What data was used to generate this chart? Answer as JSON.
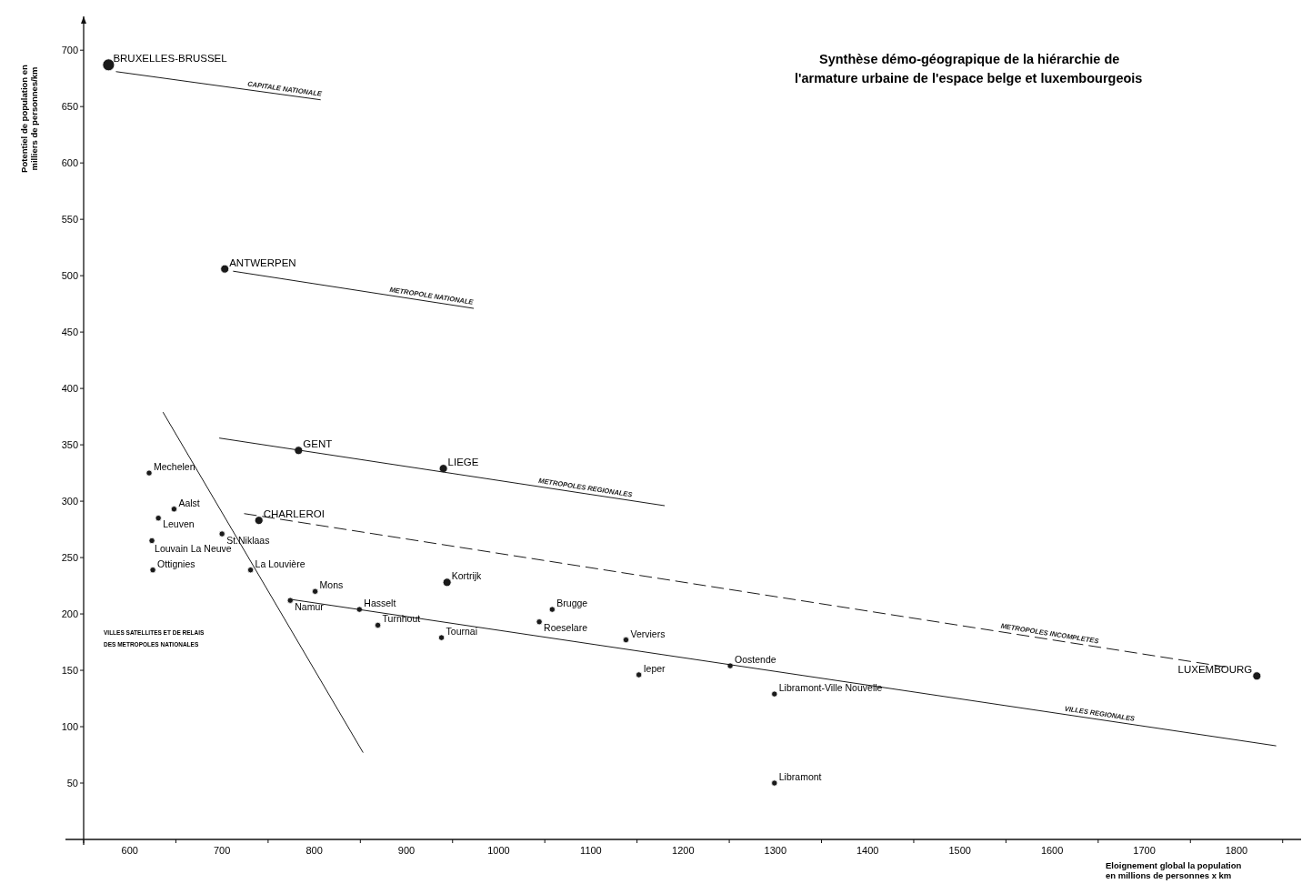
{
  "chart_data": {
    "type": "scatter",
    "title": "Synthèse démo-géograpique de la hiérarchie de\nl'armature urbaine de l'espace belge et luxembourgeois",
    "xlabel": "Eloignement global la population\nen millions de personnes x km",
    "ylabel": "Potentiel de population en\nmilliers de personnes/km",
    "xlim": [
      550,
      1870
    ],
    "ylim": [
      0,
      730
    ],
    "xticks": [
      {
        "value": 550,
        "label": null
      },
      600,
      {
        "value": 650,
        "label": null
      },
      700,
      {
        "value": 750,
        "label": null
      },
      800,
      {
        "value": 850,
        "label": null
      },
      900,
      {
        "value": 950,
        "label": null
      },
      1000,
      {
        "value": 1050,
        "label": null
      },
      1100,
      {
        "value": 1150,
        "label": null
      },
      1200,
      {
        "value": 1250,
        "label": null
      },
      1300,
      {
        "value": 1350,
        "label": null
      },
      1400,
      {
        "value": 1450,
        "label": null
      },
      1500,
      {
        "value": 1550,
        "label": null
      },
      1600,
      {
        "value": 1650,
        "label": null
      },
      1700,
      {
        "value": 1750,
        "label": null
      },
      1800,
      {
        "value": 1850,
        "label": null
      }
    ],
    "yticks": [
      50,
      100,
      150,
      200,
      250,
      300,
      350,
      400,
      450,
      500,
      550,
      600,
      650,
      700
    ],
    "grid": false,
    "series": [
      {
        "marker": "circle",
        "color": "#1a1a1a",
        "x": [
          577
        ],
        "values": [
          687
        ]
      },
      {
        "marker": "circle",
        "color": "#1a1a1a",
        "x": [
          703,
          783,
          940,
          740,
          944,
          1822
        ],
        "values": [
          506,
          345,
          329,
          283,
          228,
          145
        ]
      },
      {
        "marker": "circle",
        "color": "#1a1a1a",
        "x": [
          621,
          648,
          631,
          700,
          624,
          625,
          731,
          774,
          801,
          849,
          869,
          938,
          1058,
          1044,
          1138,
          1251,
          1152,
          1299,
          1299
        ],
        "values": [
          325,
          293,
          285,
          271,
          265,
          239,
          239,
          212,
          220,
          204,
          190,
          179,
          204,
          193,
          177,
          154,
          146,
          129,
          50
        ]
      },
      {
        "type": "line",
        "name": "CAPITALE NATIONALE",
        "color": "#1a1a1a",
        "line_style": "solid",
        "x": [
          585,
          807
        ],
        "values": [
          681,
          656
        ]
      },
      {
        "type": "line",
        "name": "METROPOLE NATIONALE",
        "color": "#1a1a1a",
        "line_style": "solid",
        "x": [
          712,
          973
        ],
        "values": [
          504,
          471
        ]
      },
      {
        "type": "line",
        "name": "METROPOLES REGIONALES",
        "color": "#1a1a1a",
        "line_style": "solid",
        "x": [
          697,
          1180
        ],
        "values": [
          356,
          296
        ]
      },
      {
        "type": "line",
        "name": "METROPOLES INCOMPLETES",
        "color": "#1a1a1a",
        "line_style": "dashed",
        "x": [
          724,
          1788
        ],
        "values": [
          289,
          153
        ]
      },
      {
        "type": "line",
        "name": "VILLES REGIONALES",
        "color": "#1a1a1a",
        "line_style": "solid",
        "x": [
          774,
          1843
        ],
        "values": [
          213,
          83
        ]
      },
      {
        "type": "line",
        "color": "#1a1a1a",
        "line_style": "solid",
        "x": [
          636,
          853
        ],
        "values": [
          379,
          77
        ]
      }
    ],
    "annotations": [
      {
        "text": "BRUXELLES-BRUSSEL",
        "x": 577,
        "y": 687
      },
      {
        "text": "ANTWERPEN",
        "x": 703,
        "y": 506
      },
      {
        "text": "GENT",
        "x": 783,
        "y": 345
      },
      {
        "text": "LIEGE",
        "x": 940,
        "y": 329
      },
      {
        "text": "CHARLEROI",
        "x": 740,
        "y": 283
      },
      {
        "text": "Kortrijk",
        "x": 944,
        "y": 228
      },
      {
        "text": "LUXEMBOURG",
        "x": 1822,
        "y": 145
      },
      {
        "text": "Mechelen",
        "x": 621,
        "y": 325
      },
      {
        "text": "Aalst",
        "x": 648,
        "y": 293
      },
      {
        "text": "Leuven",
        "x": 631,
        "y": 285
      },
      {
        "text": "St.Niklaas",
        "x": 700,
        "y": 271
      },
      {
        "text": "Louvain La Neuve",
        "x": 624,
        "y": 265
      },
      {
        "text": "Ottignies",
        "x": 625,
        "y": 239
      },
      {
        "text": "La Louvière",
        "x": 731,
        "y": 239
      },
      {
        "text": "Namur",
        "x": 774,
        "y": 212
      },
      {
        "text": "Mons",
        "x": 801,
        "y": 220
      },
      {
        "text": "Hasselt",
        "x": 849,
        "y": 204
      },
      {
        "text": "Turnhout",
        "x": 869,
        "y": 190
      },
      {
        "text": "Tournai",
        "x": 938,
        "y": 179
      },
      {
        "text": "Brugge",
        "x": 1058,
        "y": 204
      },
      {
        "text": "Roeselare",
        "x": 1044,
        "y": 193
      },
      {
        "text": "Verviers",
        "x": 1138,
        "y": 177
      },
      {
        "text": "Oostende",
        "x": 1251,
        "y": 154
      },
      {
        "text": "Ieper",
        "x": 1152,
        "y": 146
      },
      {
        "text": "Libramont-Ville Nouvelle",
        "x": 1299,
        "y": 129
      },
      {
        "text": "Libramont",
        "x": 1299,
        "y": 50
      },
      "VILLES SATELLITES ET DE RELAIS\nDES METROPOLES NATIONALES"
    ]
  }
}
